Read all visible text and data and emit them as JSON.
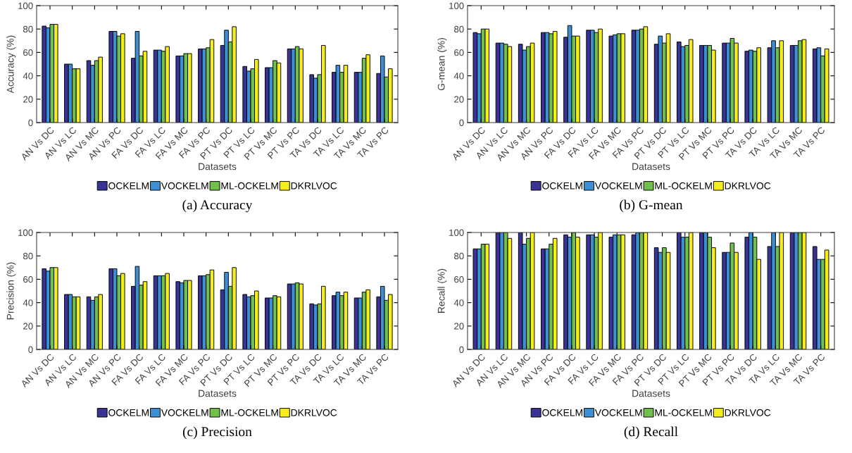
{
  "chart_data": [
    {
      "type": "bar",
      "title": "(a) Accuracy",
      "xlabel": "Datasets",
      "ylabel": "Accuracy (%)",
      "ylim": [
        0,
        100
      ],
      "yticks": [
        0,
        20,
        40,
        60,
        80,
        100
      ],
      "grid": false,
      "legend": "bottom",
      "categories": [
        "AN Vs DC",
        "AN Vs LC",
        "AN Vs MC",
        "AN Vs PC",
        "FA Vs DC",
        "FA Vs LC",
        "FA Vs MC",
        "FA Vs PC",
        "PT Vs DC",
        "PT Vs LC",
        "PT Vs MC",
        "PT Vs PC",
        "TA Vs DC",
        "TA Vs LC",
        "TA Vs MC",
        "TA Vs PC"
      ],
      "series": [
        {
          "name": "OCKELM",
          "color": "#3a3396",
          "values": [
            82.5,
            50,
            53,
            78,
            55,
            62,
            57,
            63,
            66,
            48,
            47,
            63,
            41,
            43,
            43,
            42
          ]
        },
        {
          "name": "VOCKELM",
          "color": "#3b8fd4",
          "values": [
            81,
            50,
            49,
            78,
            78,
            62,
            57,
            63,
            79,
            44,
            47,
            63,
            38,
            49,
            43,
            57
          ]
        },
        {
          "name": "ML-OCKELM",
          "color": "#72c04c",
          "values": [
            84,
            46,
            53,
            74,
            57,
            61,
            59,
            64,
            69,
            46,
            53,
            65,
            41,
            43,
            55,
            39
          ]
        },
        {
          "name": "DKRLVOC",
          "color": "#f5ee1c",
          "values": [
            84,
            46,
            56,
            76,
            61,
            65,
            59,
            71,
            82,
            54,
            51,
            63,
            66,
            49,
            58,
            46
          ]
        }
      ]
    },
    {
      "type": "bar",
      "title": "(b) G-mean",
      "xlabel": "Datasets",
      "ylabel": "G-mean (%)",
      "ylim": [
        0,
        100
      ],
      "yticks": [
        0,
        20,
        40,
        60,
        80,
        100
      ],
      "grid": false,
      "legend": "bottom",
      "categories": [
        "AN Vs DC",
        "AN Vs LC",
        "AN Vs MC",
        "AN Vs PC",
        "FA Vs DC",
        "FA Vs LC",
        "FA Vs MC",
        "FA Vs PC",
        "PT Vs DC",
        "PT Vs LC",
        "PT Vs MC",
        "PT Vs PC",
        "TA Vs DC",
        "TA Vs LC",
        "TA Vs MC",
        "TA Vs PC"
      ],
      "series": [
        {
          "name": "OCKELM",
          "color": "#3a3396",
          "values": [
            77,
            68,
            67,
            77,
            73,
            79,
            74,
            79,
            67,
            69,
            66,
            68,
            61,
            64,
            66,
            63
          ]
        },
        {
          "name": "VOCKELM",
          "color": "#3b8fd4",
          "values": [
            76,
            68,
            62,
            77,
            83,
            79,
            75,
            79,
            74,
            65,
            66,
            68,
            62,
            70,
            66,
            64
          ]
        },
        {
          "name": "ML-OCKELM",
          "color": "#72c04c",
          "values": [
            80,
            67,
            65,
            76,
            74,
            77,
            76,
            80,
            68,
            66,
            66,
            72,
            61,
            64,
            70,
            57
          ]
        },
        {
          "name": "DKRLVOC",
          "color": "#f5ee1c",
          "values": [
            80,
            65,
            68,
            78,
            74,
            80,
            76,
            82,
            76,
            71,
            62,
            68,
            64,
            70,
            71,
            63
          ]
        }
      ]
    },
    {
      "type": "bar",
      "title": "(c) Precision",
      "xlabel": "Datasets",
      "ylabel": "Precision (%)",
      "ylim": [
        0,
        100
      ],
      "yticks": [
        0,
        20,
        40,
        60,
        80,
        100
      ],
      "grid": false,
      "legend": "bottom",
      "categories": [
        "AN Vs DC",
        "AN Vs LC",
        "AN Vs MC",
        "AN Vs PC",
        "FA Vs DC",
        "FA Vs LC",
        "FA Vs MC",
        "FA Vs PC",
        "PT Vs DC",
        "PT Vs LC",
        "PT Vs MC",
        "PT Vs PC",
        "TA Vs DC",
        "TA Vs LC",
        "TA Vs MC",
        "TA Vs PC"
      ],
      "series": [
        {
          "name": "OCKELM",
          "color": "#3a3396",
          "values": [
            69,
            47,
            45,
            69,
            54,
            63,
            58,
            63,
            51,
            47,
            44,
            56,
            39,
            46,
            44,
            45
          ]
        },
        {
          "name": "VOCKELM",
          "color": "#3b8fd4",
          "values": [
            67,
            47,
            42,
            69,
            71,
            63,
            57,
            63,
            66,
            45,
            44,
            56,
            38,
            49,
            44,
            54
          ]
        },
        {
          "name": "ML-OCKELM",
          "color": "#72c04c",
          "values": [
            70,
            45,
            45,
            63,
            55,
            63,
            59,
            64,
            54,
            46,
            46,
            57,
            39,
            46,
            49,
            42
          ]
        },
        {
          "name": "DKRLVOC",
          "color": "#f5ee1c",
          "values": [
            70,
            45,
            47,
            65,
            58,
            65,
            59,
            68,
            70,
            50,
            45,
            56,
            54,
            49,
            51,
            47
          ]
        }
      ]
    },
    {
      "type": "bar",
      "title": "(d) Recall",
      "xlabel": "Datasets",
      "ylabel": "Recall (%)",
      "ylim": [
        0,
        100
      ],
      "yticks": [
        0,
        20,
        40,
        60,
        80,
        100
      ],
      "grid": false,
      "legend": "bottom",
      "categories": [
        "AN Vs DC",
        "AN Vs LC",
        "AN Vs MC",
        "AN Vs PC",
        "FA Vs DC",
        "FA Vs LC",
        "FA Vs MC",
        "FA Vs PC",
        "PT Vs DC",
        "PT Vs LC",
        "PT Vs MC",
        "PT Vs PC",
        "TA Vs DC",
        "TA Vs LC",
        "TA Vs MC",
        "TA Vs PC"
      ],
      "series": [
        {
          "name": "OCKELM",
          "color": "#3a3396",
          "values": [
            86,
            100,
            100,
            86,
            98,
            98,
            96,
            98,
            87,
            100,
            100,
            83,
            96,
            88,
            100,
            88
          ]
        },
        {
          "name": "VOCKELM",
          "color": "#3b8fd4",
          "values": [
            86,
            100,
            90,
            86,
            96,
            98,
            98,
            100,
            83,
            96,
            100,
            83,
            100,
            100,
            100,
            77
          ]
        },
        {
          "name": "ML-OCKELM",
          "color": "#72c04c",
          "values": [
            90,
            100,
            95,
            90,
            100,
            96,
            98,
            100,
            87,
            96,
            96,
            91,
            96,
            88,
            100,
            77
          ]
        },
        {
          "name": "DKRLVOC",
          "color": "#f5ee1c",
          "values": [
            90,
            95,
            100,
            95,
            96,
            100,
            98,
            100,
            83,
            100,
            87,
            83,
            77,
            100,
            100,
            85
          ]
        }
      ]
    }
  ]
}
